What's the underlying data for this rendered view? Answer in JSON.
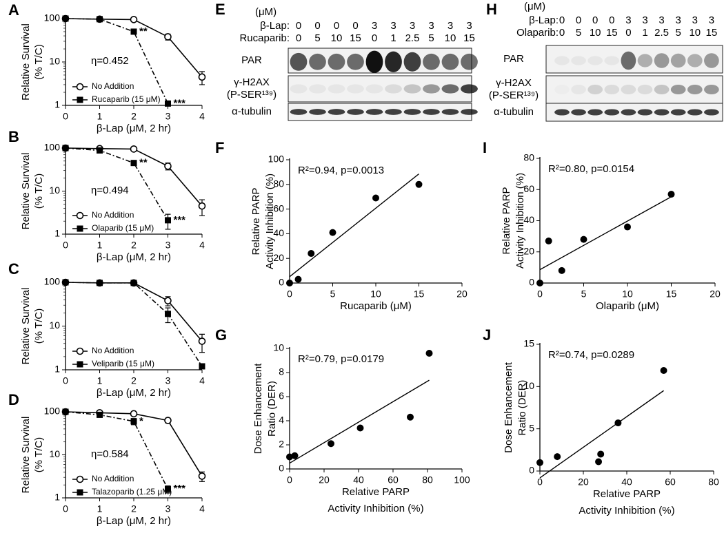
{
  "chart_data": [
    {
      "type": "line",
      "panel": "A",
      "log_y": true,
      "ylabel": [
        "Relative Survival",
        "(% T/C)"
      ],
      "xlabel": [
        "β-Lap (μM, 2 hr)"
      ],
      "annotation": "η=0.452",
      "x": [
        0,
        1,
        2,
        3,
        4
      ],
      "xlim": [
        0,
        4
      ],
      "xticks": [
        0,
        1,
        2,
        3,
        4
      ],
      "ylim": [
        1,
        100
      ],
      "yticks": [
        1,
        10,
        100
      ],
      "series": [
        {
          "name": "No Addition",
          "color": "#000000",
          "marker": "open-circle",
          "line_style": "solid",
          "values": [
            100,
            97,
            95,
            38,
            4.5
          ],
          "errors": [
            0,
            0,
            0,
            6,
            1.5
          ]
        },
        {
          "name": "Rucaparib (15 μM)",
          "color": "#000000",
          "marker": "square",
          "line_style": "dashdot",
          "values": [
            100,
            97,
            50,
            1.1,
            null
          ],
          "errors": [
            0,
            0,
            3,
            0.1,
            null
          ]
        }
      ],
      "annotations": [
        {
          "text": "**",
          "x": 2,
          "y": 50
        },
        {
          "text": "***",
          "x": 3,
          "y": 1.1
        }
      ]
    },
    {
      "type": "line",
      "panel": "B",
      "log_y": true,
      "ylabel": [
        "Relative Survival",
        "(% T/C)"
      ],
      "xlabel": [
        "β-Lap (μM, 2 hr)"
      ],
      "annotation": "η=0.494",
      "x": [
        0,
        1,
        2,
        3,
        4
      ],
      "xlim": [
        0,
        4
      ],
      "xticks": [
        0,
        1,
        2,
        3,
        4
      ],
      "ylim": [
        1,
        100
      ],
      "yticks": [
        1,
        10,
        100
      ],
      "series": [
        {
          "name": "No Addition",
          "color": "#000000",
          "marker": "open-circle",
          "line_style": "solid",
          "values": [
            100,
            97,
            95,
            38,
            4.5
          ],
          "errors": [
            0,
            0,
            0,
            7,
            1.8
          ]
        },
        {
          "name": "Olaparib (15 μM)",
          "color": "#000000",
          "marker": "square",
          "line_style": "dashdot",
          "values": [
            100,
            88,
            45,
            2.1,
            null
          ],
          "errors": [
            0,
            0,
            3,
            0.8,
            null
          ]
        }
      ],
      "annotations": [
        {
          "text": "**",
          "x": 2,
          "y": 45
        },
        {
          "text": "***",
          "x": 3,
          "y": 2.1
        }
      ]
    },
    {
      "type": "line",
      "panel": "C",
      "log_y": true,
      "ylabel": [
        "Relative Survival",
        "(% T/C)"
      ],
      "xlabel": [
        "β-Lap (μM, 2 hr)"
      ],
      "x": [
        0,
        1,
        2,
        3,
        4
      ],
      "xlim": [
        0,
        4
      ],
      "xticks": [
        0,
        1,
        2,
        3,
        4
      ],
      "ylim": [
        1,
        100
      ],
      "yticks": [
        1,
        10,
        100
      ],
      "series": [
        {
          "name": "No Addition",
          "color": "#000000",
          "marker": "open-circle",
          "line_style": "solid",
          "values": [
            100,
            97,
            97,
            38,
            4.5
          ],
          "errors": [
            0,
            0,
            0,
            9,
            2
          ]
        },
        {
          "name": "Veliparib (15 μM)",
          "color": "#000000",
          "marker": "square",
          "line_style": "dashdot",
          "values": [
            100,
            97,
            97,
            19,
            1.2
          ],
          "errors": [
            0,
            0,
            0,
            7,
            0.1
          ]
        }
      ]
    },
    {
      "type": "line",
      "panel": "D",
      "log_y": true,
      "ylabel": [
        "Relative Survival",
        "(% T/C)"
      ],
      "xlabel": [
        "β-Lap (μM, 2 hr)"
      ],
      "annotation": "η=0.584",
      "x": [
        0,
        1,
        2,
        3,
        4
      ],
      "xlim": [
        0,
        4
      ],
      "xticks": [
        0,
        1,
        2,
        3,
        4
      ],
      "ylim": [
        1,
        100
      ],
      "yticks": [
        1,
        10,
        100
      ],
      "series": [
        {
          "name": "No Addition",
          "color": "#000000",
          "marker": "open-circle",
          "line_style": "solid",
          "values": [
            100,
            95,
            90,
            63,
            3.2
          ],
          "errors": [
            0,
            5,
            5,
            8,
            0.8
          ]
        },
        {
          "name": "Talazoparib (1.25 μM)",
          "color": "#000000",
          "marker": "square",
          "line_style": "dashdot",
          "values": [
            100,
            85,
            60,
            1.6,
            null
          ],
          "errors": [
            0,
            7,
            10,
            0.3,
            null
          ]
        }
      ],
      "annotations": [
        {
          "text": "*",
          "x": 2,
          "y": 60
        },
        {
          "text": "***",
          "x": 3,
          "y": 1.6
        }
      ]
    },
    {
      "type": "scatter",
      "panel": "F",
      "ylabel": [
        "Relative PARP",
        "Activity Inhibition (%)"
      ],
      "xlabel": [
        "Rucaparib (μM)"
      ],
      "annotation": "R²=0.94, p=0.0013",
      "trendline": true,
      "x": [
        0,
        1,
        2.5,
        5,
        10,
        15
      ],
      "y": [
        0,
        3,
        24,
        41,
        69,
        80
      ],
      "color": "#000000",
      "xlim": [
        0,
        20
      ],
      "xticks": [
        0,
        5,
        10,
        15,
        20
      ],
      "ylim": [
        0,
        100
      ],
      "yticks": [
        0,
        20,
        40,
        60,
        80,
        100
      ]
    },
    {
      "type": "scatter",
      "panel": "G",
      "ylabel": [
        "Dose Enhancement",
        "Ratio (DER)"
      ],
      "xlabel": [
        "Relative PARP",
        "Activity Inhibition (%)"
      ],
      "annotation": "R²=0.79, p=0.0179",
      "trendline": true,
      "x": [
        0,
        3,
        24,
        41,
        70,
        81
      ],
      "y": [
        1,
        1.1,
        2.1,
        3.4,
        4.3,
        9.6
      ],
      "color": "#000000",
      "xlim": [
        0,
        100
      ],
      "xticks": [
        0,
        20,
        40,
        60,
        80,
        100
      ],
      "ylim": [
        0,
        10
      ],
      "yticks": [
        0,
        2,
        4,
        6,
        8,
        10
      ]
    },
    {
      "type": "scatter",
      "panel": "I",
      "ylabel": [
        "Relative PARP",
        "Activity Inhibition (%)"
      ],
      "xlabel": [
        "Olaparib (μM)"
      ],
      "annotation": "R²=0.80, p=0.0154",
      "trendline": true,
      "x": [
        0,
        1,
        2.5,
        5,
        10,
        15
      ],
      "y": [
        0,
        27,
        8,
        28,
        36,
        57
      ],
      "color": "#000000",
      "xlim": [
        0,
        20
      ],
      "xticks": [
        0,
        5,
        10,
        15,
        20
      ],
      "ylim": [
        0,
        80
      ],
      "yticks": [
        0,
        20,
        40,
        60,
        80
      ]
    },
    {
      "type": "scatter",
      "panel": "J",
      "ylabel": [
        "Dose Enhancement",
        "Ratio (DER)"
      ],
      "xlabel": [
        "Relative PARP",
        "Activity Inhibition (%)"
      ],
      "annotation": "R²=0.74, p=0.0289",
      "trendline": true,
      "x": [
        0,
        8,
        27,
        28,
        36,
        57
      ],
      "y": [
        1,
        1.7,
        1.1,
        2,
        5.7,
        11.9
      ],
      "color": "#000000",
      "xlim": [
        0,
        80
      ],
      "xticks": [
        0,
        20,
        40,
        60,
        80
      ],
      "ylim": [
        0,
        15
      ],
      "yticks": [
        0,
        5,
        10,
        15
      ]
    }
  ],
  "blots": [
    {
      "panel": "E",
      "unit": "(μM)",
      "rows": [
        {
          "label": "β-Lap:",
          "values": [
            0,
            0,
            0,
            0,
            3,
            3,
            3,
            3,
            3,
            3
          ]
        },
        {
          "label": "Rucaparib:",
          "values": [
            0,
            5,
            10,
            15,
            0,
            1,
            2.5,
            5,
            10,
            15
          ]
        }
      ],
      "bands": [
        [
          "PAR"
        ],
        [
          "γ-H2AX",
          "(P-SER¹³⁹)"
        ],
        [
          "α-tubulin"
        ]
      ]
    },
    {
      "panel": "H",
      "unit": "(μM)",
      "rows": [
        {
          "label": "β-Lap:",
          "values": [
            0,
            0,
            0,
            0,
            3,
            3,
            3,
            3,
            3,
            3
          ]
        },
        {
          "label": "Olaparib:",
          "values": [
            0,
            5,
            10,
            15,
            0,
            1,
            2.5,
            5,
            10,
            15
          ]
        }
      ],
      "bands": [
        [
          "PAR"
        ],
        [
          "γ-H2AX",
          "(P-SER¹³⁹)"
        ],
        [
          "α-tubulin"
        ]
      ]
    }
  ]
}
